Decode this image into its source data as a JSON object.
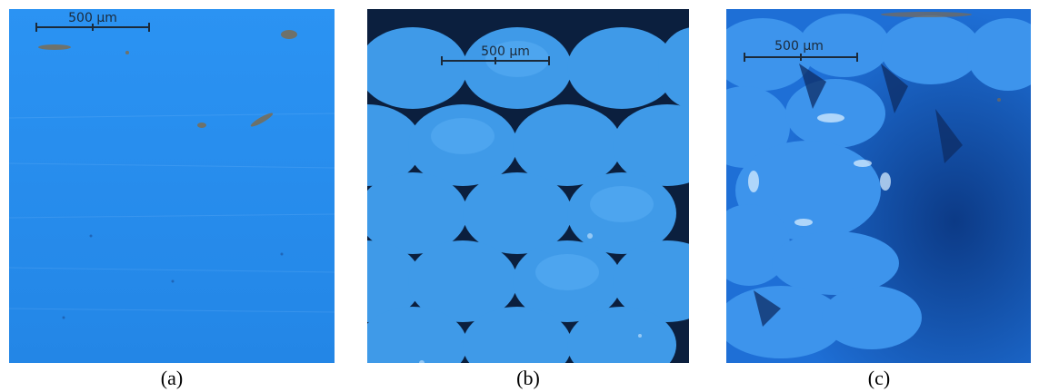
{
  "panels": [
    {
      "id": "a",
      "caption": "(a)",
      "scale_label": "500 µm"
    },
    {
      "id": "b",
      "caption": "(b)",
      "scale_label": "500 µm"
    },
    {
      "id": "c",
      "caption": "(c)",
      "scale_label": "500 µm"
    }
  ],
  "colors": {
    "surface_blue": "#2a8ff0",
    "filament_blue": "#3f9ae8",
    "gap_dark": "#0b1f3e",
    "highlight": "#cfe9ff",
    "scale_bar": "#1b2a3a"
  }
}
